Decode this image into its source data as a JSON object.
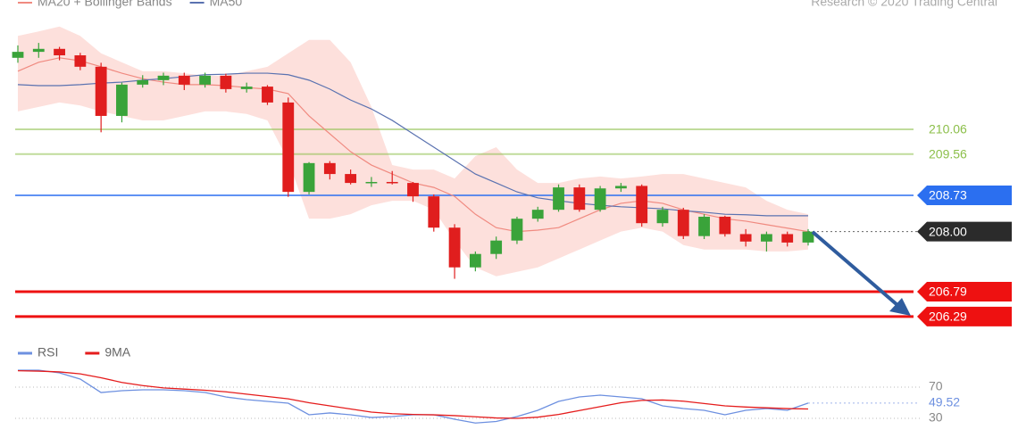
{
  "chart_data": [
    {
      "type": "candlestick",
      "source": "Research © 2020 Trading Central",
      "up_color": "#3aa33a",
      "down_color": "#e01e1e",
      "ylim": [
        206.0,
        212.7
      ],
      "candles": {
        "open": [
          211.5,
          211.62,
          211.68,
          211.55,
          211.32,
          210.33,
          210.96,
          211.05,
          211.14,
          210.96,
          211.14,
          210.87,
          210.92,
          210.6,
          208.8,
          209.38,
          209.16,
          208.98,
          209.0,
          208.98,
          208.71,
          208.08,
          207.28,
          207.55,
          207.82,
          208.26,
          208.44,
          208.89,
          208.44,
          208.87,
          208.92,
          208.17,
          208.44,
          207.91,
          208.3,
          207.95,
          207.8,
          207.95,
          207.78
        ],
        "high": [
          211.75,
          211.8,
          211.72,
          211.6,
          211.4,
          211.0,
          211.15,
          211.2,
          211.2,
          211.2,
          211.18,
          211.0,
          210.95,
          210.7,
          209.4,
          209.42,
          209.25,
          209.1,
          209.22,
          209.0,
          208.75,
          208.15,
          207.6,
          207.9,
          208.3,
          208.5,
          208.95,
          208.95,
          208.92,
          208.98,
          208.95,
          208.5,
          208.48,
          208.35,
          208.32,
          208.05,
          208.0,
          208.0,
          208.05
        ],
        "low": [
          211.4,
          211.5,
          211.45,
          211.25,
          210.0,
          210.2,
          210.9,
          210.95,
          210.85,
          210.9,
          210.8,
          210.8,
          210.55,
          208.7,
          208.75,
          209.05,
          208.95,
          208.9,
          208.95,
          208.6,
          208.0,
          207.05,
          207.2,
          207.45,
          207.75,
          208.2,
          208.4,
          208.4,
          208.4,
          208.8,
          208.1,
          208.1,
          207.85,
          207.85,
          207.9,
          207.7,
          207.6,
          207.7,
          207.72
        ],
        "close": [
          211.62,
          211.68,
          211.55,
          211.32,
          210.33,
          210.96,
          211.05,
          211.14,
          210.96,
          211.14,
          210.87,
          210.92,
          210.6,
          208.8,
          209.38,
          209.16,
          208.98,
          209.0,
          208.98,
          208.71,
          208.08,
          207.28,
          207.55,
          207.82,
          208.26,
          208.44,
          208.89,
          208.44,
          208.87,
          208.92,
          208.17,
          208.44,
          207.91,
          208.3,
          207.95,
          207.8,
          207.95,
          207.78,
          208.0
        ]
      },
      "series": [
        {
          "name": "MA20 + Bollinger Bands",
          "color": "#f08a80",
          "band_color": "#fde0dc",
          "values": [
            211.23,
            211.41,
            211.5,
            211.44,
            211.32,
            211.19,
            211.08,
            211.01,
            210.96,
            210.96,
            210.94,
            210.9,
            210.87,
            210.78,
            210.33,
            209.97,
            209.61,
            209.34,
            209.16,
            208.98,
            208.89,
            208.71,
            208.35,
            208.08,
            208.0,
            208.03,
            208.08,
            208.26,
            208.44,
            208.57,
            208.62,
            208.57,
            208.44,
            208.35,
            208.26,
            208.21,
            208.14,
            208.07,
            208.0
          ],
          "upper": [
            211.94,
            212.03,
            212.13,
            211.94,
            211.59,
            211.41,
            211.23,
            211.23,
            211.19,
            211.14,
            211.14,
            211.23,
            211.32,
            211.59,
            211.86,
            211.86,
            211.41,
            210.51,
            209.34,
            209.25,
            209.25,
            209.07,
            209.52,
            209.7,
            209.25,
            208.98,
            208.98,
            209.07,
            209.11,
            209.07,
            209.11,
            209.16,
            209.16,
            209.07,
            208.98,
            208.89,
            208.62,
            208.44,
            208.35
          ],
          "lower": [
            210.42,
            210.51,
            210.6,
            210.54,
            210.42,
            210.33,
            210.24,
            210.24,
            210.33,
            210.42,
            210.42,
            210.37,
            210.24,
            209.43,
            208.26,
            208.26,
            208.35,
            208.53,
            208.62,
            208.62,
            208.44,
            207.82,
            207.28,
            207.1,
            207.19,
            207.28,
            207.46,
            207.64,
            207.82,
            208.0,
            208.08,
            208.0,
            207.73,
            207.64,
            207.64,
            207.64,
            207.6,
            207.6,
            207.64
          ]
        },
        {
          "name": "MA50",
          "color": "#5a72b0",
          "values": [
            210.96,
            210.94,
            210.94,
            210.96,
            210.99,
            211.01,
            211.05,
            211.08,
            211.12,
            211.16,
            211.17,
            211.19,
            211.19,
            211.16,
            211.05,
            210.87,
            210.65,
            210.47,
            210.24,
            209.97,
            209.7,
            209.43,
            209.16,
            208.98,
            208.8,
            208.68,
            208.62,
            208.57,
            208.53,
            208.5,
            208.48,
            208.46,
            208.42,
            208.39,
            208.35,
            208.34,
            208.32,
            208.32,
            208.32
          ]
        }
      ],
      "levels": [
        {
          "value": 210.06,
          "color": "#8cbf4a",
          "box": false
        },
        {
          "value": 209.56,
          "color": "#8cbf4a",
          "box": false
        },
        {
          "value": 208.73,
          "color": "#2b6ff0",
          "box": true
        },
        {
          "value": 208,
          "label": "208.00",
          "color": "#2b2b2b",
          "box": true
        },
        {
          "value": 206.79,
          "color": "#ee1111",
          "box": true
        },
        {
          "value": 206.29,
          "color": "#ee1111",
          "box": true
        }
      ]
    },
    {
      "type": "line",
      "ylim": [
        0,
        100
      ],
      "yticks": [
        70,
        30
      ],
      "last_value": 49.52,
      "series": [
        {
          "name": "RSI",
          "color": "#6d90e0",
          "values": [
            91.7,
            91.7,
            88.3,
            80.3,
            63.1,
            65.4,
            66.6,
            66.6,
            65.4,
            63.1,
            57.4,
            54.0,
            51.7,
            49.4,
            34.6,
            36.9,
            34.6,
            31.1,
            32.3,
            34.6,
            34.6,
            28.9,
            24.0,
            26.0,
            32.3,
            40.3,
            51.7,
            57.4,
            59.7,
            57.4,
            55.1,
            46.0,
            42.6,
            40.3,
            34.6,
            40.3,
            42.6,
            40.3,
            49.52
          ]
        },
        {
          "name": "9MA",
          "color": "#e51c1c",
          "values": [
            91.0,
            90.5,
            89.5,
            87.0,
            82.0,
            76.0,
            72.0,
            69.0,
            67.5,
            66.0,
            64.0,
            61.0,
            58.0,
            55.0,
            50.0,
            46.0,
            42.0,
            38.0,
            36.0,
            35.0,
            34.5,
            33.5,
            32.0,
            30.5,
            30.0,
            31.5,
            35.0,
            40.0,
            45.0,
            50.0,
            53.0,
            53.5,
            52.0,
            49.0,
            46.0,
            44.5,
            43.5,
            42.5,
            42.0
          ]
        }
      ]
    }
  ]
}
